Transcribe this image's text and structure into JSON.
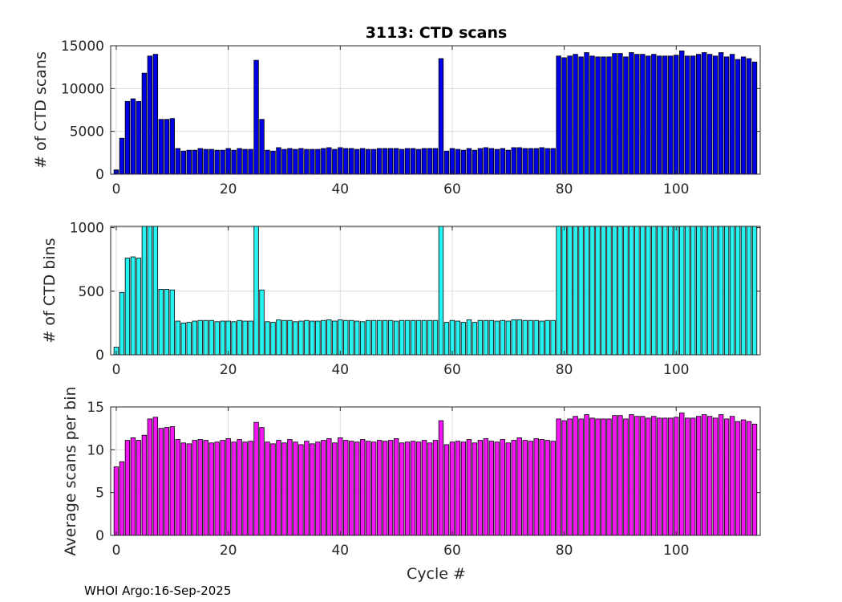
{
  "chart_data": [
    {
      "type": "bar",
      "title": "3113: CTD scans",
      "xlabel": "",
      "ylabel": "# of CTD scans",
      "color": "#0000e6",
      "xlim": [
        -1,
        115
      ],
      "ylim": [
        0,
        15000
      ],
      "yticks": [
        0,
        5000,
        10000,
        15000
      ],
      "xticks": [
        0,
        20,
        40,
        60,
        80,
        100
      ],
      "x": [
        0,
        1,
        2,
        3,
        4,
        5,
        6,
        7,
        8,
        9,
        10,
        11,
        12,
        13,
        14,
        15,
        16,
        17,
        18,
        19,
        20,
        21,
        22,
        23,
        24,
        25,
        26,
        27,
        28,
        29,
        30,
        31,
        32,
        33,
        34,
        35,
        36,
        37,
        38,
        39,
        40,
        41,
        42,
        43,
        44,
        45,
        46,
        47,
        48,
        49,
        50,
        51,
        52,
        53,
        54,
        55,
        56,
        57,
        58,
        59,
        60,
        61,
        62,
        63,
        64,
        65,
        66,
        67,
        68,
        69,
        70,
        71,
        72,
        73,
        74,
        75,
        76,
        77,
        78,
        79,
        80,
        81,
        82,
        83,
        84,
        85,
        86,
        87,
        88,
        89,
        90,
        91,
        92,
        93,
        94,
        95,
        96,
        97,
        98,
        99,
        100,
        101,
        102,
        103,
        104,
        105,
        106,
        107,
        108,
        109,
        110,
        111,
        112,
        113,
        114
      ],
      "values": [
        500,
        4200,
        8500,
        8800,
        8500,
        11800,
        13800,
        14000,
        6400,
        6400,
        6500,
        3000,
        2700,
        2800,
        2800,
        3000,
        2900,
        2900,
        2800,
        2800,
        3000,
        2800,
        3000,
        2900,
        2900,
        13300,
        6400,
        2800,
        2700,
        3100,
        2900,
        3000,
        2900,
        3000,
        2900,
        2900,
        2900,
        3000,
        3100,
        2900,
        3100,
        3000,
        3000,
        2900,
        3000,
        2900,
        2900,
        3000,
        3000,
        3000,
        3000,
        2900,
        3000,
        3000,
        2900,
        3000,
        3000,
        3000,
        13500,
        2700,
        3000,
        2900,
        2800,
        3000,
        2800,
        3000,
        3100,
        3000,
        2900,
        3000,
        2800,
        3100,
        3100,
        3000,
        3000,
        3000,
        3100,
        3000,
        3000,
        13800,
        13600,
        13800,
        14000,
        13700,
        14200,
        13800,
        13700,
        13700,
        13700,
        14100,
        14100,
        13700,
        14200,
        14000,
        14000,
        13800,
        14000,
        13800,
        13800,
        13800,
        13900,
        14400,
        13800,
        13800,
        14000,
        14200,
        14000,
        13800,
        14200,
        13700,
        14000,
        13400,
        13700,
        13500,
        13100
      ]
    },
    {
      "type": "bar",
      "title": "",
      "xlabel": "",
      "ylabel": "# of CTD bins",
      "color": "#27f2f2",
      "xlim": [
        -1,
        115
      ],
      "ylim": [
        0,
        1010
      ],
      "yticks": [
        0,
        500,
        1000
      ],
      "xticks": [
        0,
        20,
        40,
        60,
        80,
        100
      ],
      "x": [
        0,
        1,
        2,
        3,
        4,
        5,
        6,
        7,
        8,
        9,
        10,
        11,
        12,
        13,
        14,
        15,
        16,
        17,
        18,
        19,
        20,
        21,
        22,
        23,
        24,
        25,
        26,
        27,
        28,
        29,
        30,
        31,
        32,
        33,
        34,
        35,
        36,
        37,
        38,
        39,
        40,
        41,
        42,
        43,
        44,
        45,
        46,
        47,
        48,
        49,
        50,
        51,
        52,
        53,
        54,
        55,
        56,
        57,
        58,
        59,
        60,
        61,
        62,
        63,
        64,
        65,
        66,
        67,
        68,
        69,
        70,
        71,
        72,
        73,
        74,
        75,
        76,
        77,
        78,
        79,
        80,
        81,
        82,
        83,
        84,
        85,
        86,
        87,
        88,
        89,
        90,
        91,
        92,
        93,
        94,
        95,
        96,
        97,
        98,
        99,
        100,
        101,
        102,
        103,
        104,
        105,
        106,
        107,
        108,
        109,
        110,
        111,
        112,
        113,
        114
      ],
      "values": [
        60,
        490,
        760,
        770,
        760,
        1010,
        1010,
        1010,
        515,
        515,
        510,
        265,
        250,
        255,
        265,
        270,
        270,
        270,
        260,
        265,
        265,
        260,
        270,
        265,
        265,
        1010,
        510,
        260,
        255,
        275,
        270,
        270,
        260,
        265,
        270,
        265,
        265,
        270,
        275,
        265,
        275,
        270,
        270,
        265,
        260,
        270,
        270,
        270,
        270,
        270,
        265,
        270,
        270,
        270,
        270,
        270,
        270,
        270,
        1010,
        255,
        270,
        265,
        255,
        275,
        255,
        270,
        270,
        270,
        265,
        270,
        265,
        275,
        275,
        270,
        270,
        270,
        265,
        270,
        270,
        1010,
        1010,
        1010,
        1010,
        1010,
        1010,
        1010,
        1010,
        1010,
        1010,
        1010,
        1010,
        1010,
        1010,
        1010,
        1010,
        1010,
        1010,
        1010,
        1010,
        1010,
        1010,
        1010,
        1010,
        1010,
        1010,
        1010,
        1010,
        1010,
        1010,
        1010,
        1010,
        1010,
        1010,
        1010,
        1010
      ]
    },
    {
      "type": "bar",
      "title": "",
      "xlabel": "Cycle #",
      "ylabel": "Average scans per bin",
      "color": "#f217f2",
      "xlim": [
        -1,
        115
      ],
      "ylim": [
        0,
        15
      ],
      "yticks": [
        0,
        5,
        10,
        15
      ],
      "xticks": [
        0,
        20,
        40,
        60,
        80,
        100
      ],
      "x": [
        0,
        1,
        2,
        3,
        4,
        5,
        6,
        7,
        8,
        9,
        10,
        11,
        12,
        13,
        14,
        15,
        16,
        17,
        18,
        19,
        20,
        21,
        22,
        23,
        24,
        25,
        26,
        27,
        28,
        29,
        30,
        31,
        32,
        33,
        34,
        35,
        36,
        37,
        38,
        39,
        40,
        41,
        42,
        43,
        44,
        45,
        46,
        47,
        48,
        49,
        50,
        51,
        52,
        53,
        54,
        55,
        56,
        57,
        58,
        59,
        60,
        61,
        62,
        63,
        64,
        65,
        66,
        67,
        68,
        69,
        70,
        71,
        72,
        73,
        74,
        75,
        76,
        77,
        78,
        79,
        80,
        81,
        82,
        83,
        84,
        85,
        86,
        87,
        88,
        89,
        90,
        91,
        92,
        93,
        94,
        95,
        96,
        97,
        98,
        99,
        100,
        101,
        102,
        103,
        104,
        105,
        106,
        107,
        108,
        109,
        110,
        111,
        112,
        113,
        114
      ],
      "values": [
        8,
        8.6,
        11.1,
        11.4,
        11.1,
        11.7,
        13.6,
        13.8,
        12.5,
        12.6,
        12.7,
        11.2,
        10.8,
        10.7,
        11.1,
        11.2,
        11.1,
        10.8,
        10.9,
        11.1,
        11.3,
        10.9,
        11.2,
        10.9,
        11,
        13.2,
        12.6,
        10.9,
        10.7,
        11.1,
        10.8,
        11.2,
        10.9,
        10.6,
        11,
        10.7,
        10.9,
        11.1,
        11.3,
        10.8,
        11.4,
        11.1,
        11,
        10.9,
        11.2,
        11,
        10.9,
        11.1,
        11,
        11.1,
        11.3,
        10.8,
        10.9,
        11,
        10.9,
        11.1,
        10.8,
        11.1,
        13.4,
        10.6,
        10.9,
        11,
        10.9,
        11.2,
        10.8,
        11.1,
        11.3,
        11,
        10.9,
        11.2,
        10.8,
        11.1,
        11.4,
        11.1,
        11,
        11.3,
        11.2,
        11.1,
        11,
        13.6,
        13.4,
        13.6,
        13.9,
        13.6,
        14.1,
        13.7,
        13.6,
        13.6,
        13.6,
        14,
        14,
        13.6,
        14.1,
        13.9,
        13.9,
        13.7,
        13.9,
        13.7,
        13.7,
        13.7,
        13.8,
        14.3,
        13.7,
        13.7,
        13.9,
        14.1,
        13.9,
        13.7,
        14.1,
        13.6,
        13.9,
        13.3,
        13.5,
        13.3,
        13
      ]
    }
  ],
  "footer": {
    "credit": "WHOI Argo:16-Sep-2025"
  }
}
